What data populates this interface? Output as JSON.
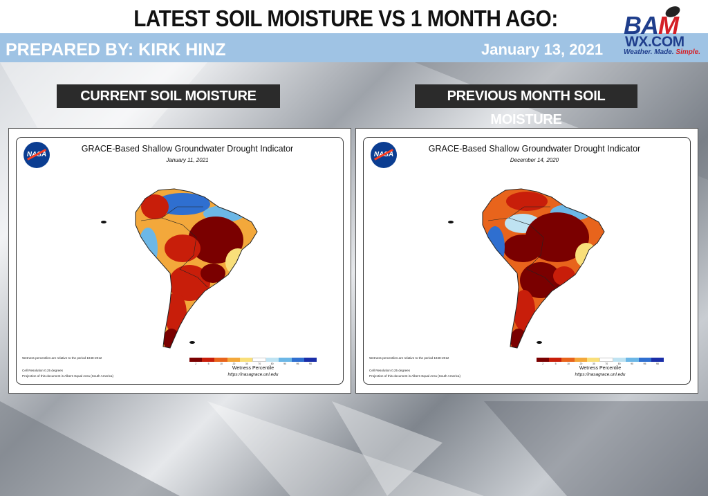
{
  "header": {
    "title": "LATEST SOIL MOISTURE VS 1 MONTH AGO:",
    "prepared_by": "PREPARED BY: KIRK HINZ",
    "date": "January 13, 2021"
  },
  "logo": {
    "line1_a": "BA",
    "line1_b": "M",
    "line2": "WX.COM",
    "tagline_a": "Weather. Made. ",
    "tagline_b": "Simple."
  },
  "labels": {
    "current": "CURRENT SOIL MOISTURE",
    "previous": "PREVIOUS MONTH SOIL MOISTURE"
  },
  "maps": [
    {
      "title": "GRACE-Based Shallow Groundwater Drought Indicator",
      "date": "January 11, 2021",
      "nasa": "NASA",
      "note_period": "Wetness percentiles are relative to the period 1948-2012",
      "note_resolution": "Cell Resolution 0.25 degrees",
      "note_projection": "Projection of this document is Albers Equal Area (South America)",
      "legend_label": "Wetness Percentile",
      "legend_url": "https://nasagrace.unl.edu",
      "legend_ticks": [
        "2",
        "5",
        "10",
        "20",
        "30",
        "70",
        "80",
        "90",
        "95",
        "98"
      ]
    },
    {
      "title": "GRACE-Based Shallow Groundwater Drought Indicator",
      "date": "December 14, 2020",
      "nasa": "NASA",
      "note_period": "Wetness percentiles are relative to the period 1948-2012",
      "note_resolution": "Cell Resolution 0.25 degrees",
      "note_projection": "Projection of this document is Albers Equal Area (South America)",
      "legend_label": "Wetness Percentile",
      "legend_url": "https://nasagrace.unl.edu",
      "legend_ticks": [
        "2",
        "5",
        "10",
        "20",
        "30",
        "70",
        "80",
        "90",
        "95",
        "98"
      ]
    }
  ],
  "legend_colors": [
    "#7a0000",
    "#c81e0a",
    "#e8641c",
    "#f3a83b",
    "#f9df7a",
    "#ffffff",
    "#bfe3f2",
    "#6cb7e6",
    "#2f6fd0",
    "#1a2ea8"
  ]
}
